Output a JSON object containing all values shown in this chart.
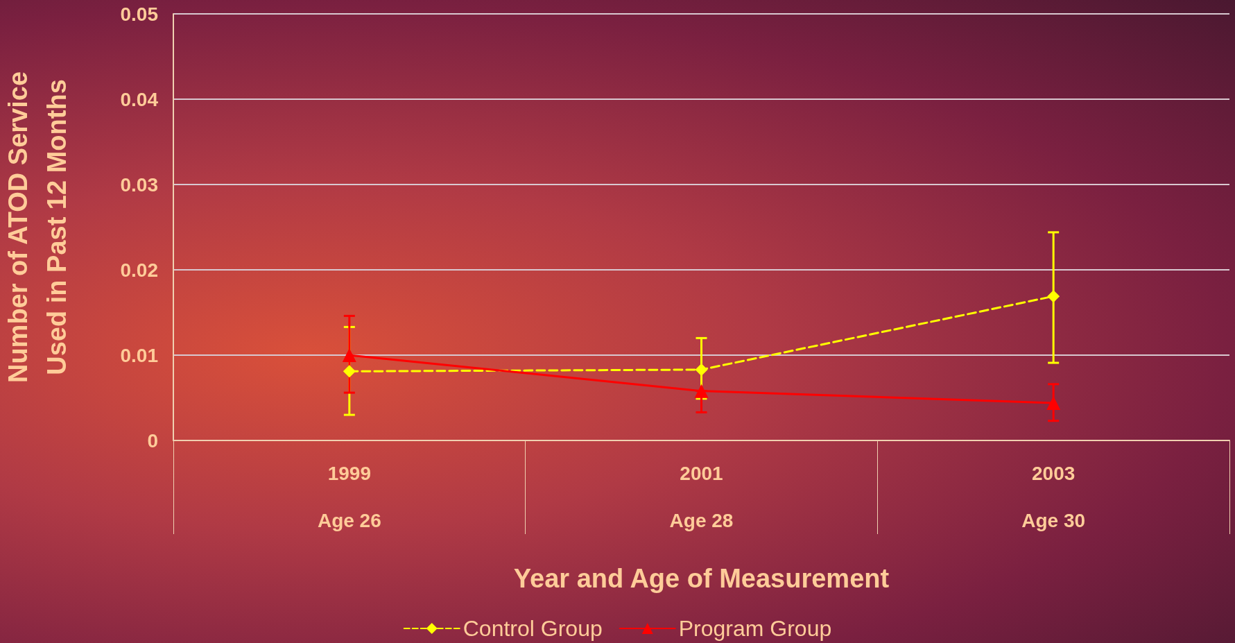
{
  "chart_data": {
    "type": "line",
    "xlabel": "Year and Age of Measurement",
    "ylabel": "Number of ATOD Service\nUsed in Past 12 Months",
    "categories": [
      "1999\n\nAge 26",
      "2001\n\nAge 28",
      "2003\n\nAge 30"
    ],
    "series": [
      {
        "name": "Control Group",
        "color": "#ffff00",
        "values": [
          0.0081,
          0.0083,
          0.0169
        ],
        "errors": [
          [
            0.003,
            0.0133
          ],
          [
            0.0049,
            0.012
          ],
          [
            0.0091,
            0.0244
          ]
        ],
        "marker": "diamond",
        "line_style": "dashed"
      },
      {
        "name": "Program Group",
        "color": "#ff0000",
        "values": [
          0.01,
          0.0058,
          0.0044
        ],
        "errors": [
          [
            0.0056,
            0.0146
          ],
          [
            0.0033,
            0.0058
          ],
          [
            0.0023,
            0.0066
          ]
        ],
        "marker": "triangle",
        "line_style": "solid"
      }
    ],
    "ylim": [
      0,
      0.05
    ],
    "yticks": [
      0,
      0.01,
      0.02,
      0.03,
      0.04,
      0.05
    ],
    "grid": "y",
    "legend": "bottom"
  }
}
